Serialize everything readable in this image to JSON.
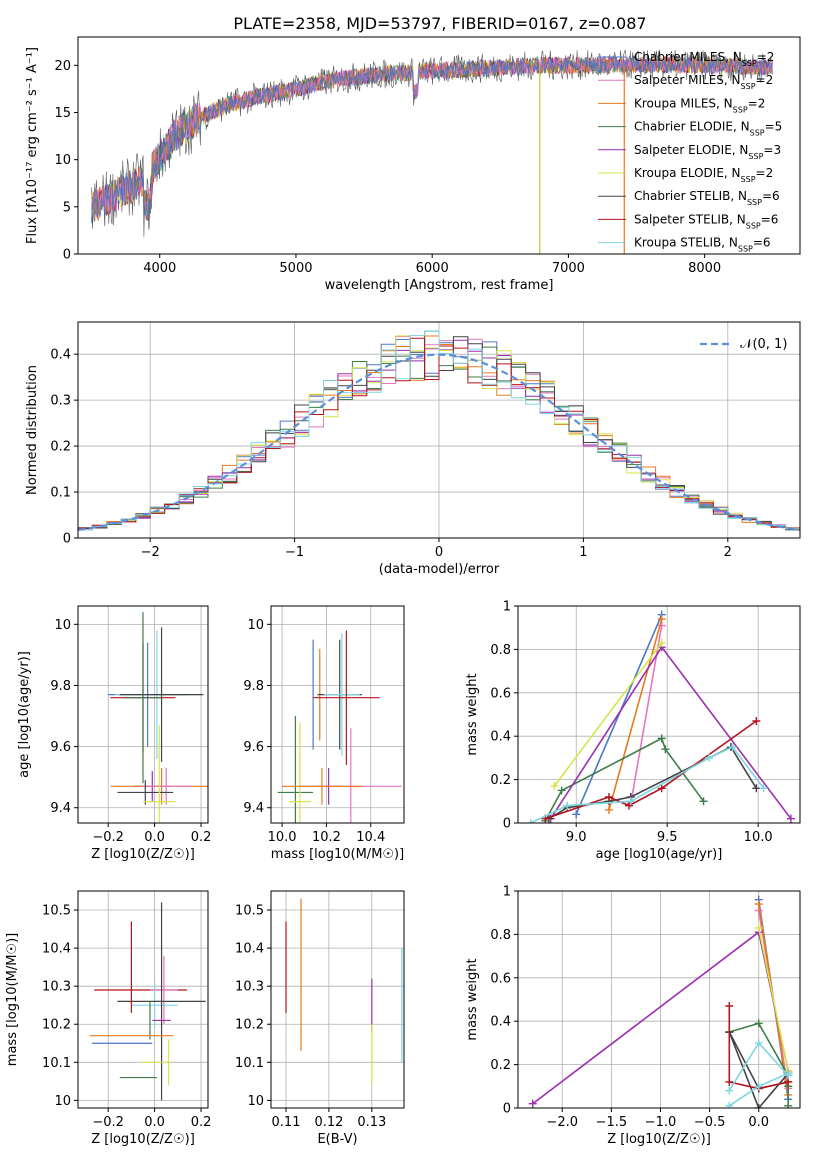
{
  "page_title": "PLATE=2358, MJD=53797, FIBERID=0167, z=0.087",
  "series_styles": [
    {
      "name": "Chabrier MILES",
      "n_ssp": "2",
      "color": "#4c78c8"
    },
    {
      "name": "Salpeter MILES",
      "n_ssp": "2",
      "color": "#e377c2"
    },
    {
      "name": "Kroupa MILES",
      "n_ssp": "2",
      "color": "#e87a1e"
    },
    {
      "name": "Chabrier ELODIE",
      "n_ssp": "5",
      "color": "#3f7d4a"
    },
    {
      "name": "Salpeter ELODIE",
      "n_ssp": "3",
      "color": "#9b2fae"
    },
    {
      "name": "Kroupa ELODIE",
      "n_ssp": "2",
      "color": "#d8e34a"
    },
    {
      "name": "Chabrier STELIB",
      "n_ssp": "6",
      "color": "#444444"
    },
    {
      "name": "Salpeter STELIB",
      "n_ssp": "6",
      "color": "#b3141c"
    },
    {
      "name": "Kroupa STELIB",
      "n_ssp": "6",
      "color": "#7fd6e0"
    }
  ],
  "chart_data": [
    {
      "id": "spectrum",
      "type": "line",
      "title": "PLATE=2358, MJD=53797, FIBERID=0167, z=0.087",
      "xlabel": "wavelength [Angstrom, rest frame]",
      "ylabel": "Flux [fλ10⁻¹⁷ erg cm⁻² s⁻¹ A⁻¹]",
      "xlim": [
        3400,
        8700
      ],
      "ylim": [
        0,
        23
      ],
      "xticks": [
        4000,
        5000,
        6000,
        7000,
        8000
      ],
      "yticks": [
        0,
        5,
        10,
        15,
        20
      ],
      "legend_position": "upper-right",
      "series_names": [
        "Chabrier MILES",
        "Salpeter MILES",
        "Kroupa MILES",
        "Chabrier ELODIE",
        "Salpeter ELODIE",
        "Kroupa ELODIE",
        "Chabrier STELIB",
        "Salpeter STELIB",
        "Kroupa STELIB"
      ],
      "continuum": {
        "x": [
          3500,
          3700,
          3900,
          4100,
          4300,
          4500,
          4700,
          5000,
          5300,
          5600,
          6000,
          6400,
          6800,
          7200,
          7600,
          8000,
          8400
        ],
        "y": [
          5.0,
          6.5,
          8.0,
          12.5,
          14.5,
          15.8,
          16.6,
          17.5,
          18.5,
          19.0,
          19.4,
          19.7,
          20.0,
          20.0,
          20.1,
          20.0,
          19.8
        ]
      },
      "spikes": [
        {
          "x": 6790,
          "y": 0
        },
        {
          "x": 7410,
          "y": 0
        }
      ]
    },
    {
      "id": "residuals",
      "type": "histogram",
      "xlabel": "(data-model)/error",
      "ylabel": "Normed distribution",
      "xlim": [
        -2.5,
        2.5
      ],
      "ylim": [
        0,
        0.47
      ],
      "xticks": [
        -2,
        -1,
        0,
        1,
        2
      ],
      "yticks": [
        0.0,
        0.1,
        0.2,
        0.3,
        0.4
      ],
      "grid": true,
      "legend_position": "upper-right",
      "legend_label": "𝒩(0, 1)",
      "reference_curve": "gaussian mean 0 sigma 1",
      "bin_width": 0.1
    },
    {
      "id": "age-vs-Z",
      "type": "errorbar",
      "xlabel": "Z [log10(Z/Z☉)]",
      "ylabel": "age  [log10(age/yr)]",
      "xlim": [
        -0.33,
        0.23
      ],
      "ylim": [
        9.35,
        10.06
      ],
      "xticks": [
        -0.2,
        0.0,
        0.2
      ],
      "xticklabels": [
        "−0.2",
        "0.0",
        "0.2"
      ],
      "yticks": [
        9.4,
        9.6,
        9.8,
        10.0
      ],
      "grid": true,
      "points": [
        {
          "x": -0.03,
          "y": 9.77,
          "xerr": 0.17,
          "yerr": 0.17,
          "series": "Chabrier MILES"
        },
        {
          "x": 0.01,
          "y": 9.77,
          "xerr": 0.18,
          "yerr": 0.21,
          "series": "Kroupa STELIB"
        },
        {
          "x": 0.03,
          "y": 9.77,
          "xerr": 0.18,
          "yerr": 0.22,
          "series": "Chabrier STELIB"
        },
        {
          "x": -0.05,
          "y": 9.76,
          "xerr": 0.14,
          "yerr": 0.18,
          "series": "Salpeter STELIB"
        },
        {
          "x": -0.05,
          "y": 9.76,
          "xerr": 0.08,
          "yerr": 0.28,
          "series": "Chabrier ELODIE"
        },
        {
          "x": -0.01,
          "y": 9.47,
          "xerr": 0.08,
          "yerr": 0.05,
          "series": "Salpeter ELODIE"
        },
        {
          "x": 0.03,
          "y": 9.47,
          "xerr": 0.22,
          "yerr": 0.06,
          "series": "Kroupa MILES"
        },
        {
          "x": 0.05,
          "y": 9.47,
          "xerr": 0.11,
          "yerr": 0.06,
          "series": "Salpeter MILES"
        },
        {
          "x": -0.04,
          "y": 9.45,
          "xerr": 0.12,
          "yerr": 0.04,
          "series": "Chabrier STELIB"
        },
        {
          "x": 0.02,
          "y": 9.42,
          "xerr": 0.07,
          "yerr": 0.25,
          "series": "Kroupa ELODIE"
        }
      ]
    },
    {
      "id": "age-vs-mass",
      "type": "errorbar",
      "xlabel": "mass [log10(M/M☉)]",
      "ylabel": "",
      "xlim": [
        9.95,
        10.55
      ],
      "ylim": [
        9.35,
        10.06
      ],
      "xticks": [
        10.0,
        10.2,
        10.4
      ],
      "xticklabels": [
        "10.0",
        "10.2",
        "10.4"
      ],
      "yticks": [
        9.4,
        9.6,
        9.8,
        10.0
      ],
      "grid": true,
      "points": [
        {
          "x": 10.14,
          "y": 9.77,
          "xerr": 0.0,
          "yerr": 0.18,
          "series": "Chabrier MILES"
        },
        {
          "x": 10.17,
          "y": 9.77,
          "xerr": 0.0,
          "yerr": 0.15,
          "series": "Kroupa MILES"
        },
        {
          "x": 10.26,
          "y": 9.77,
          "xerr": 0.1,
          "yerr": 0.18,
          "series": "Chabrier STELIB"
        },
        {
          "x": 10.27,
          "y": 9.77,
          "xerr": 0.08,
          "yerr": 0.2,
          "series": "Kroupa STELIB"
        },
        {
          "x": 10.29,
          "y": 9.76,
          "xerr": 0.15,
          "yerr": 0.22,
          "series": "Salpeter STELIB"
        },
        {
          "x": 10.06,
          "y": 9.45,
          "xerr": 0.08,
          "yerr": 0.25,
          "series": "Chabrier ELODIE"
        },
        {
          "x": 10.08,
          "y": 9.42,
          "xerr": 0.05,
          "yerr": 0.26,
          "series": "Kroupa ELODIE"
        },
        {
          "x": 10.21,
          "y": 9.47,
          "xerr": 0.05,
          "yerr": 0.06,
          "series": "Salpeter ELODIE"
        },
        {
          "x": 10.31,
          "y": 9.47,
          "xerr": 0.23,
          "yerr": 0.19,
          "series": "Salpeter MILES"
        },
        {
          "x": 10.18,
          "y": 9.47,
          "xerr": 0.18,
          "yerr": 0.06,
          "series": "Kroupa MILES"
        }
      ]
    },
    {
      "id": "weight-vs-age",
      "type": "line",
      "xlabel": "age  [log10(age/yr)]",
      "ylabel": "mass weight",
      "xlim": [
        8.68,
        10.23
      ],
      "ylim": [
        0,
        1.0
      ],
      "xticks": [
        9.0,
        9.5,
        10.0
      ],
      "xticklabels": [
        "9.0",
        "9.5",
        "10.0"
      ],
      "yticks": [
        0.0,
        0.2,
        0.4,
        0.6,
        0.8,
        1.0
      ],
      "grid": true,
      "series": [
        {
          "name": "Chabrier MILES",
          "x": [
            9.0,
            9.47
          ],
          "y": [
            0.04,
            0.96
          ]
        },
        {
          "name": "Salpeter MILES",
          "x": [
            9.3,
            9.47
          ],
          "y": [
            0.09,
            0.91
          ]
        },
        {
          "name": "Kroupa MILES",
          "x": [
            9.18,
            9.47
          ],
          "y": [
            0.06,
            0.94
          ]
        },
        {
          "name": "Chabrier ELODIE",
          "x": [
            8.83,
            8.92,
            9.47,
            9.49,
            9.7
          ],
          "y": [
            0.01,
            0.15,
            0.39,
            0.34,
            0.1
          ]
        },
        {
          "name": "Salpeter ELODIE",
          "x": [
            8.86,
            9.47,
            10.18
          ],
          "y": [
            0.02,
            0.81,
            0.02
          ]
        },
        {
          "name": "Kroupa ELODIE",
          "x": [
            8.88,
            9.47
          ],
          "y": [
            0.17,
            0.83
          ]
        },
        {
          "name": "Chabrier STELIB",
          "x": [
            8.85,
            8.95,
            9.18,
            9.3,
            9.85,
            9.99
          ],
          "y": [
            0.02,
            0.07,
            0.1,
            0.12,
            0.35,
            0.16
          ]
        },
        {
          "name": "Salpeter STELIB",
          "x": [
            8.83,
            9.18,
            9.29,
            9.47,
            9.99
          ],
          "y": [
            0.02,
            0.12,
            0.08,
            0.16,
            0.47
          ]
        },
        {
          "name": "Kroupa STELIB",
          "x": [
            8.75,
            8.95,
            9.3,
            9.73,
            9.86,
            10.03
          ],
          "y": [
            0.0,
            0.08,
            0.1,
            0.3,
            0.35,
            0.16
          ]
        }
      ]
    },
    {
      "id": "mass-vs-Z",
      "type": "errorbar",
      "xlabel": "Z [log10(Z/Z☉)]",
      "ylabel": "mass [log10(M/M☉)]",
      "xlim": [
        -0.33,
        0.23
      ],
      "ylim": [
        9.98,
        10.55
      ],
      "xticks": [
        -0.2,
        0.0,
        0.2
      ],
      "xticklabels": [
        "−0.2",
        "0.0",
        "0.2"
      ],
      "yticks": [
        10.0,
        10.1,
        10.2,
        10.3,
        10.4,
        10.5
      ],
      "grid": true,
      "points": [
        {
          "x": -0.06,
          "y": 10.29,
          "xerr": 0.2,
          "yerr": 0.0,
          "series": "Salpeter STELIB"
        },
        {
          "x": 0.04,
          "y": 10.29,
          "xerr": 0.06,
          "yerr": 0.09,
          "series": "Salpeter MILES"
        },
        {
          "x": 0.0,
          "y": 10.25,
          "xerr": 0.1,
          "yerr": 0.06,
          "series": "Kroupa STELIB"
        },
        {
          "x": 0.03,
          "y": 10.26,
          "xerr": 0.19,
          "yerr": 0.26,
          "series": "Chabrier STELIB"
        },
        {
          "x": -0.1,
          "y": 10.35,
          "xerr": 0.0,
          "yerr": 0.12,
          "series": "Salpeter STELIB"
        },
        {
          "x": -0.02,
          "y": 10.21,
          "xerr": 0.0,
          "yerr": 0.05,
          "series": "Chabrier ELODIE"
        },
        {
          "x": 0.03,
          "y": 10.21,
          "xerr": 0.04,
          "yerr": 0.0,
          "series": "Salpeter ELODIE"
        },
        {
          "x": -0.1,
          "y": 10.17,
          "xerr": 0.18,
          "yerr": 0.0,
          "series": "Kroupa MILES"
        },
        {
          "x": -0.14,
          "y": 10.15,
          "xerr": 0.13,
          "yerr": 0.0,
          "series": "Chabrier MILES"
        },
        {
          "x": 0.0,
          "y": 10.1,
          "xerr": 0.06,
          "yerr": 0.0,
          "series": "Kroupa ELODIE"
        },
        {
          "x": -0.07,
          "y": 10.06,
          "xerr": 0.08,
          "yerr": 0.0,
          "series": "Chabrier ELODIE"
        },
        {
          "x": 0.06,
          "y": 10.1,
          "xerr": 0.0,
          "yerr": 0.06,
          "series": "Kroupa ELODIE"
        }
      ]
    },
    {
      "id": "mass-vs-ebv",
      "type": "errorbar",
      "xlabel": "E(B-V)",
      "ylabel": "",
      "xlim": [
        0.1065,
        0.1375
      ],
      "ylim": [
        9.98,
        10.55
      ],
      "xticks": [
        0.11,
        0.12,
        0.13
      ],
      "xticklabels": [
        "0.11",
        "0.12",
        "0.13"
      ],
      "yticks": [
        10.0,
        10.1,
        10.2,
        10.3,
        10.4,
        10.5
      ],
      "grid": true,
      "points": [
        {
          "x": 0.11,
          "y": 10.35,
          "yerr": 0.12,
          "series": "Salpeter STELIB"
        },
        {
          "x": 0.1135,
          "y": 10.33,
          "yerr": 0.2,
          "series": "Kroupa MILES"
        },
        {
          "x": 0.13,
          "y": 10.25,
          "yerr": 0.07,
          "series": "Salpeter ELODIE"
        },
        {
          "x": 0.13,
          "y": 10.12,
          "yerr": 0.08,
          "series": "Kroupa ELODIE"
        },
        {
          "x": 0.137,
          "y": 10.25,
          "yerr": 0.15,
          "series": "Kroupa STELIB"
        }
      ]
    },
    {
      "id": "weight-vs-Z",
      "type": "line",
      "xlabel": "Z [log10(Z/Z☉)]",
      "ylabel": "mass weight",
      "xlim": [
        -2.45,
        0.42
      ],
      "ylim": [
        0,
        1.0
      ],
      "xticks": [
        -2.0,
        -1.5,
        -1.0,
        -0.5,
        0.0
      ],
      "xticklabels": [
        "−2.0",
        "−1.5",
        "−1.0",
        "−0.5",
        "0.0"
      ],
      "yticks": [
        0.0,
        0.2,
        0.4,
        0.6,
        0.8,
        1.0
      ],
      "grid": true,
      "series": [
        {
          "name": "Chabrier MILES",
          "x": [
            0.0,
            0.3
          ],
          "y": [
            0.96,
            0.04
          ]
        },
        {
          "name": "Salpeter MILES",
          "x": [
            0.0,
            0.3
          ],
          "y": [
            0.91,
            0.09
          ]
        },
        {
          "name": "Kroupa MILES",
          "x": [
            0.0,
            0.3
          ],
          "y": [
            0.94,
            0.06
          ]
        },
        {
          "name": "Chabrier ELODIE",
          "x": [
            -0.3,
            0.0,
            0.3,
            0.3,
            0.3
          ],
          "y": [
            0.35,
            0.39,
            0.15,
            0.1,
            0.01
          ]
        },
        {
          "name": "Salpeter ELODIE",
          "x": [
            -2.3,
            0.0,
            0.3
          ],
          "y": [
            0.02,
            0.81,
            0.17
          ]
        },
        {
          "name": "Kroupa ELODIE",
          "x": [
            0.0,
            0.3
          ],
          "y": [
            0.83,
            0.17
          ]
        },
        {
          "name": "Chabrier STELIB",
          "x": [
            -0.3,
            0.0,
            0.3,
            0.3,
            0.0,
            -0.3
          ],
          "y": [
            0.35,
            0.09,
            0.12,
            0.16,
            0.0,
            0.35
          ]
        },
        {
          "name": "Salpeter STELIB",
          "x": [
            -0.3,
            -0.3,
            0.0,
            0.3,
            0.3
          ],
          "y": [
            0.47,
            0.12,
            0.09,
            0.12,
            0.16
          ]
        },
        {
          "name": "Kroupa STELIB",
          "x": [
            -0.3,
            0.0,
            0.3,
            0.3,
            0.0,
            -0.3
          ],
          "y": [
            0.01,
            0.1,
            0.16,
            0.15,
            0.3,
            0.08
          ]
        }
      ]
    }
  ]
}
